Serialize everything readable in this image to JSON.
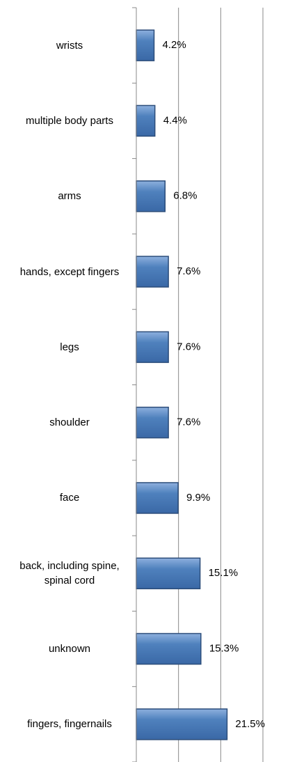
{
  "chart_data": {
    "type": "barh",
    "categories": [
      "wrists",
      "multiple body parts",
      "arms",
      "hands, except fingers",
      "legs",
      "shoulder",
      "face",
      "back, including spine, spinal cord",
      "unknown",
      "fingers, fingernails"
    ],
    "values": [
      4.2,
      4.4,
      6.8,
      7.6,
      7.6,
      7.6,
      9.9,
      15.1,
      15.3,
      21.5
    ],
    "value_labels": [
      "4.2%",
      "4.4%",
      "6.8%",
      "7.6%",
      "7.6%",
      "7.6%",
      "9.9%",
      "15.1%",
      "15.3%",
      "21.5%"
    ],
    "color": "#4f81bd",
    "xlim": [
      0,
      30
    ],
    "xticks": [
      0,
      10,
      20,
      30
    ],
    "grid": true
  }
}
